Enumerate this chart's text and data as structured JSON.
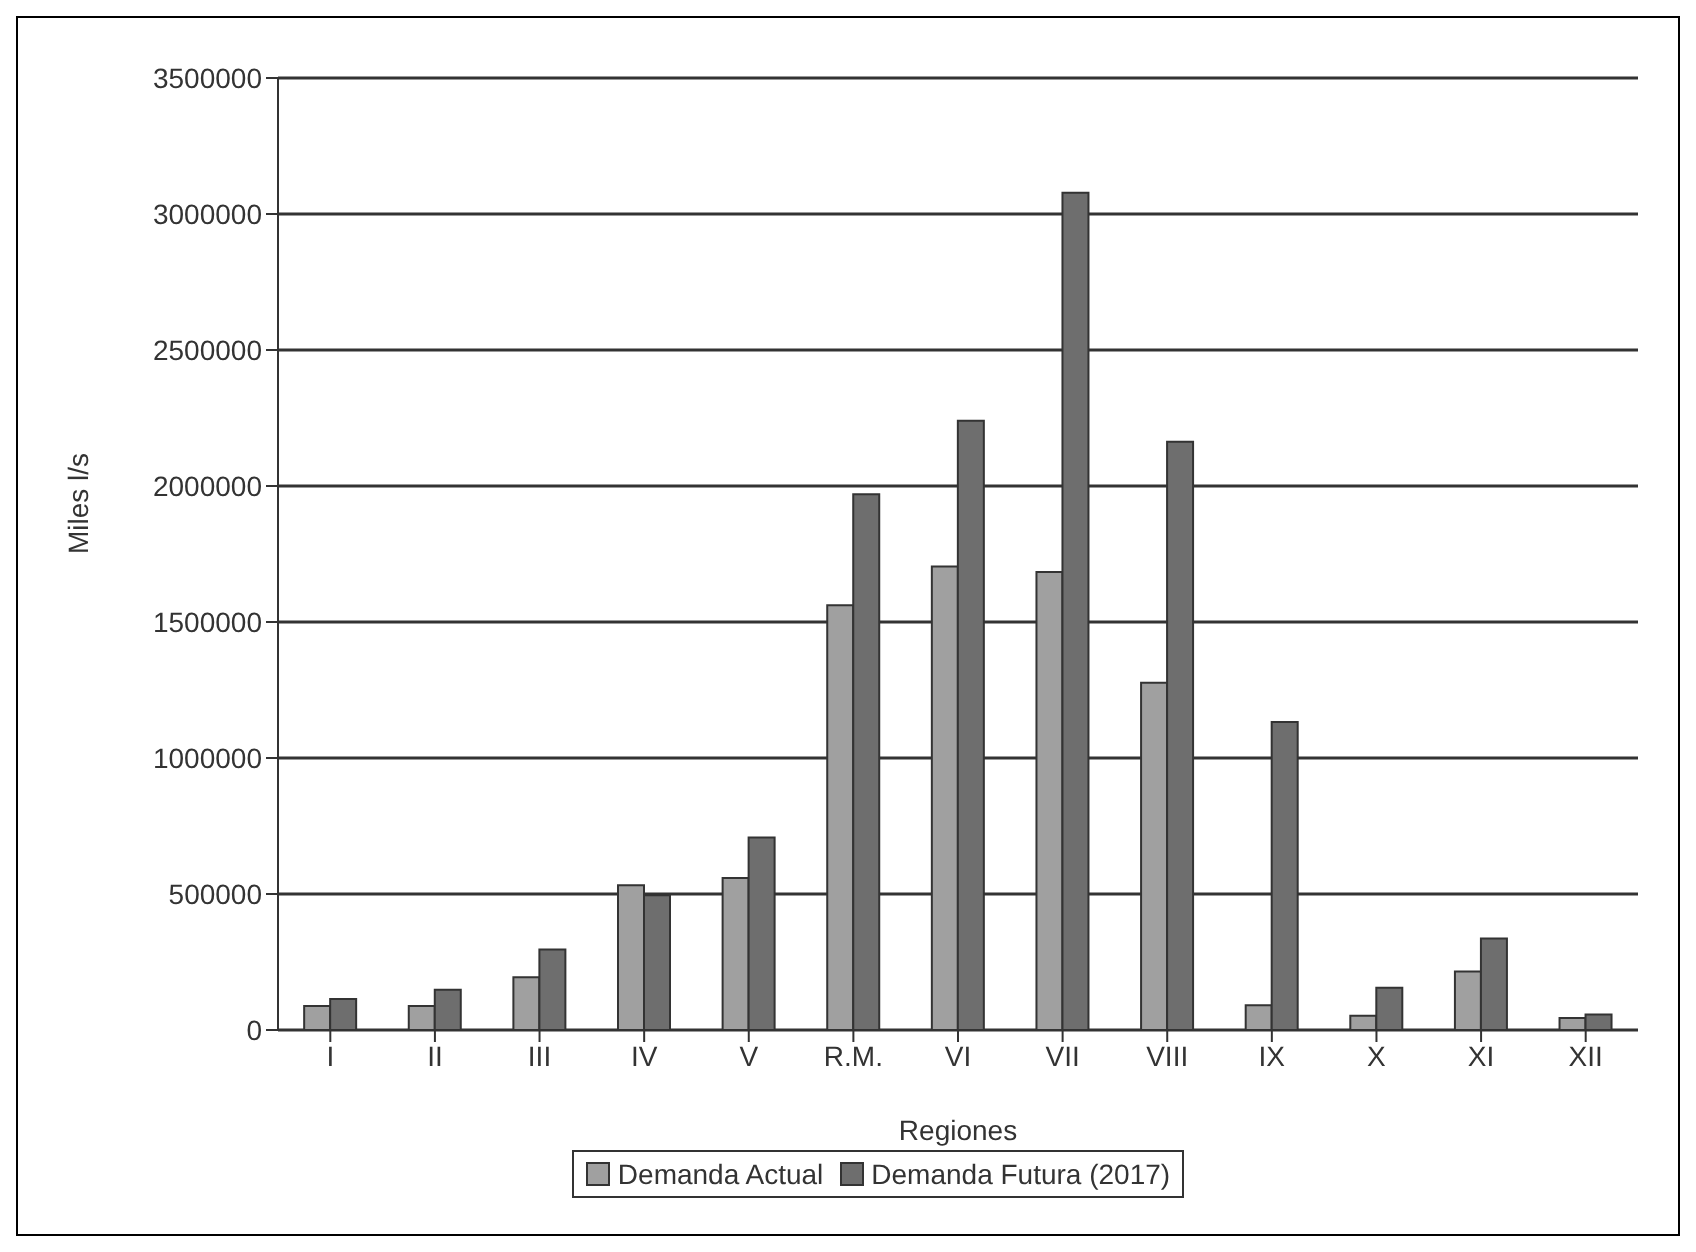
{
  "chart_data": {
    "type": "bar",
    "xlabel": "Regiones",
    "ylabel": "Miles l/s",
    "categories": [
      "I",
      "II",
      "III",
      "IV",
      "V",
      "R.M.",
      "VI",
      "VII",
      "VIII",
      "IX",
      "X",
      "XI",
      "XII"
    ],
    "series": [
      {
        "name": "Demanda Actual",
        "color": "#a0a0a0",
        "values": [
          88000,
          88000,
          194000,
          532000,
          559000,
          1562000,
          1704000,
          1684000,
          1277000,
          91000,
          52000,
          215000,
          44000
        ]
      },
      {
        "name": "Demanda Futura (2017)",
        "color": "#6e6e6e",
        "values": [
          114000,
          148000,
          296000,
          495000,
          708000,
          1970000,
          2240000,
          3078000,
          2163000,
          1132000,
          155000,
          336000,
          57000
        ]
      }
    ],
    "ylim": [
      0,
      3500000
    ],
    "yticks": [
      0,
      500000,
      1000000,
      1500000,
      2000000,
      2500000,
      3000000,
      3500000
    ],
    "grid": "y",
    "legend": "bottom"
  }
}
